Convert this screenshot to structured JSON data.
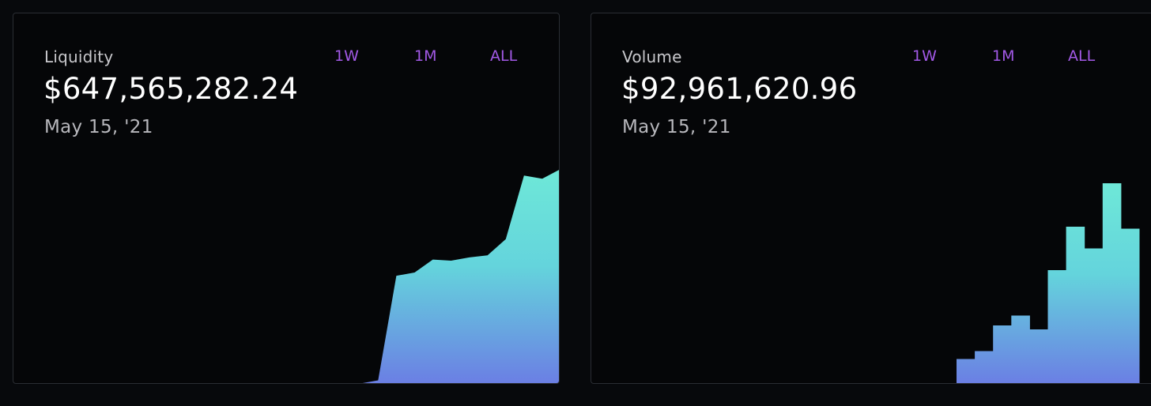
{
  "liquidity_card": {
    "label": "Liquidity",
    "value": "$647,565,282.24",
    "date": "May 15, '21",
    "tabs": [
      "1W",
      "1M",
      "ALL"
    ]
  },
  "volume_card": {
    "label": "Volume",
    "value": "$92,961,620.96",
    "date": "May 15, '21",
    "tabs": [
      "1W",
      "1M",
      "ALL"
    ]
  },
  "colors": {
    "gradient_top": "#6ee8d8",
    "gradient_mid": "#64d4dc",
    "gradient_bottom": "#6b7ee4",
    "tab_accent": "#a259e6"
  },
  "chart_data": [
    {
      "type": "area",
      "series": [
        {
          "values": [
            0,
            0,
            0,
            0,
            0,
            0,
            0,
            0,
            0,
            0,
            0,
            0,
            0,
            0,
            0,
            0,
            0,
            0,
            0,
            0.5,
            2,
            50.5,
            52,
            58,
            57.5,
            59,
            60,
            67.5,
            97,
            95.5,
            100
          ]
        }
      ],
      "ylim": [
        0,
        100
      ]
    },
    {
      "type": "bar",
      "series": [
        {
          "values": [
            0,
            0,
            0,
            0,
            0,
            0,
            0,
            0,
            0,
            0,
            0,
            0,
            0,
            0,
            0,
            0,
            0,
            0,
            0,
            0,
            13,
            17,
            30,
            35,
            28,
            58,
            80,
            69,
            102,
            79
          ]
        }
      ],
      "ylim": [
        0,
        102
      ]
    }
  ]
}
